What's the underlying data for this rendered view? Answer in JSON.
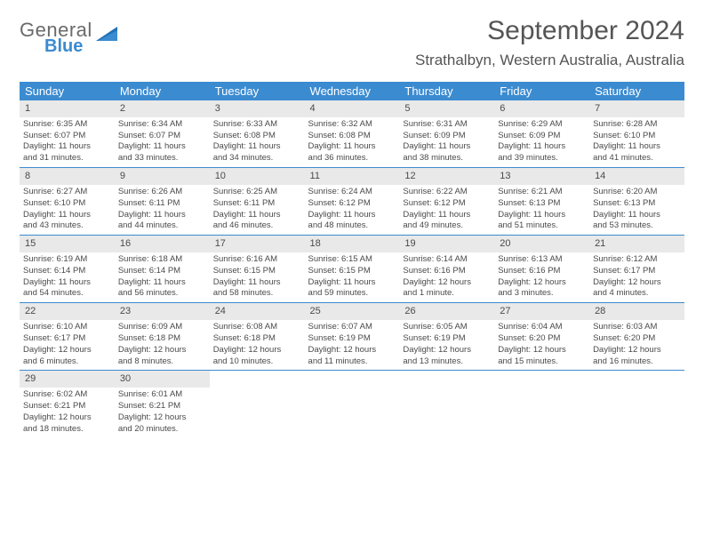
{
  "brand": {
    "line1": "General",
    "line2": "Blue"
  },
  "title": {
    "month": "September 2024",
    "location": "Strathalbyn, Western Australia, Australia"
  },
  "colors": {
    "header_bg": "#3b8bd0",
    "header_fg": "#ffffff",
    "daynum_bg": "#e9e9e9",
    "rule": "#3b8bd0",
    "text": "#4a4a4a"
  },
  "days": [
    "Sunday",
    "Monday",
    "Tuesday",
    "Wednesday",
    "Thursday",
    "Friday",
    "Saturday"
  ],
  "weeks": [
    [
      {
        "n": "1",
        "sr": "Sunrise: 6:35 AM",
        "ss": "Sunset: 6:07 PM",
        "d1": "Daylight: 11 hours",
        "d2": "and 31 minutes."
      },
      {
        "n": "2",
        "sr": "Sunrise: 6:34 AM",
        "ss": "Sunset: 6:07 PM",
        "d1": "Daylight: 11 hours",
        "d2": "and 33 minutes."
      },
      {
        "n": "3",
        "sr": "Sunrise: 6:33 AM",
        "ss": "Sunset: 6:08 PM",
        "d1": "Daylight: 11 hours",
        "d2": "and 34 minutes."
      },
      {
        "n": "4",
        "sr": "Sunrise: 6:32 AM",
        "ss": "Sunset: 6:08 PM",
        "d1": "Daylight: 11 hours",
        "d2": "and 36 minutes."
      },
      {
        "n": "5",
        "sr": "Sunrise: 6:31 AM",
        "ss": "Sunset: 6:09 PM",
        "d1": "Daylight: 11 hours",
        "d2": "and 38 minutes."
      },
      {
        "n": "6",
        "sr": "Sunrise: 6:29 AM",
        "ss": "Sunset: 6:09 PM",
        "d1": "Daylight: 11 hours",
        "d2": "and 39 minutes."
      },
      {
        "n": "7",
        "sr": "Sunrise: 6:28 AM",
        "ss": "Sunset: 6:10 PM",
        "d1": "Daylight: 11 hours",
        "d2": "and 41 minutes."
      }
    ],
    [
      {
        "n": "8",
        "sr": "Sunrise: 6:27 AM",
        "ss": "Sunset: 6:10 PM",
        "d1": "Daylight: 11 hours",
        "d2": "and 43 minutes."
      },
      {
        "n": "9",
        "sr": "Sunrise: 6:26 AM",
        "ss": "Sunset: 6:11 PM",
        "d1": "Daylight: 11 hours",
        "d2": "and 44 minutes."
      },
      {
        "n": "10",
        "sr": "Sunrise: 6:25 AM",
        "ss": "Sunset: 6:11 PM",
        "d1": "Daylight: 11 hours",
        "d2": "and 46 minutes."
      },
      {
        "n": "11",
        "sr": "Sunrise: 6:24 AM",
        "ss": "Sunset: 6:12 PM",
        "d1": "Daylight: 11 hours",
        "d2": "and 48 minutes."
      },
      {
        "n": "12",
        "sr": "Sunrise: 6:22 AM",
        "ss": "Sunset: 6:12 PM",
        "d1": "Daylight: 11 hours",
        "d2": "and 49 minutes."
      },
      {
        "n": "13",
        "sr": "Sunrise: 6:21 AM",
        "ss": "Sunset: 6:13 PM",
        "d1": "Daylight: 11 hours",
        "d2": "and 51 minutes."
      },
      {
        "n": "14",
        "sr": "Sunrise: 6:20 AM",
        "ss": "Sunset: 6:13 PM",
        "d1": "Daylight: 11 hours",
        "d2": "and 53 minutes."
      }
    ],
    [
      {
        "n": "15",
        "sr": "Sunrise: 6:19 AM",
        "ss": "Sunset: 6:14 PM",
        "d1": "Daylight: 11 hours",
        "d2": "and 54 minutes."
      },
      {
        "n": "16",
        "sr": "Sunrise: 6:18 AM",
        "ss": "Sunset: 6:14 PM",
        "d1": "Daylight: 11 hours",
        "d2": "and 56 minutes."
      },
      {
        "n": "17",
        "sr": "Sunrise: 6:16 AM",
        "ss": "Sunset: 6:15 PM",
        "d1": "Daylight: 11 hours",
        "d2": "and 58 minutes."
      },
      {
        "n": "18",
        "sr": "Sunrise: 6:15 AM",
        "ss": "Sunset: 6:15 PM",
        "d1": "Daylight: 11 hours",
        "d2": "and 59 minutes."
      },
      {
        "n": "19",
        "sr": "Sunrise: 6:14 AM",
        "ss": "Sunset: 6:16 PM",
        "d1": "Daylight: 12 hours",
        "d2": "and 1 minute."
      },
      {
        "n": "20",
        "sr": "Sunrise: 6:13 AM",
        "ss": "Sunset: 6:16 PM",
        "d1": "Daylight: 12 hours",
        "d2": "and 3 minutes."
      },
      {
        "n": "21",
        "sr": "Sunrise: 6:12 AM",
        "ss": "Sunset: 6:17 PM",
        "d1": "Daylight: 12 hours",
        "d2": "and 4 minutes."
      }
    ],
    [
      {
        "n": "22",
        "sr": "Sunrise: 6:10 AM",
        "ss": "Sunset: 6:17 PM",
        "d1": "Daylight: 12 hours",
        "d2": "and 6 minutes."
      },
      {
        "n": "23",
        "sr": "Sunrise: 6:09 AM",
        "ss": "Sunset: 6:18 PM",
        "d1": "Daylight: 12 hours",
        "d2": "and 8 minutes."
      },
      {
        "n": "24",
        "sr": "Sunrise: 6:08 AM",
        "ss": "Sunset: 6:18 PM",
        "d1": "Daylight: 12 hours",
        "d2": "and 10 minutes."
      },
      {
        "n": "25",
        "sr": "Sunrise: 6:07 AM",
        "ss": "Sunset: 6:19 PM",
        "d1": "Daylight: 12 hours",
        "d2": "and 11 minutes."
      },
      {
        "n": "26",
        "sr": "Sunrise: 6:05 AM",
        "ss": "Sunset: 6:19 PM",
        "d1": "Daylight: 12 hours",
        "d2": "and 13 minutes."
      },
      {
        "n": "27",
        "sr": "Sunrise: 6:04 AM",
        "ss": "Sunset: 6:20 PM",
        "d1": "Daylight: 12 hours",
        "d2": "and 15 minutes."
      },
      {
        "n": "28",
        "sr": "Sunrise: 6:03 AM",
        "ss": "Sunset: 6:20 PM",
        "d1": "Daylight: 12 hours",
        "d2": "and 16 minutes."
      }
    ],
    [
      {
        "n": "29",
        "sr": "Sunrise: 6:02 AM",
        "ss": "Sunset: 6:21 PM",
        "d1": "Daylight: 12 hours",
        "d2": "and 18 minutes."
      },
      {
        "n": "30",
        "sr": "Sunrise: 6:01 AM",
        "ss": "Sunset: 6:21 PM",
        "d1": "Daylight: 12 hours",
        "d2": "and 20 minutes."
      },
      null,
      null,
      null,
      null,
      null
    ]
  ]
}
